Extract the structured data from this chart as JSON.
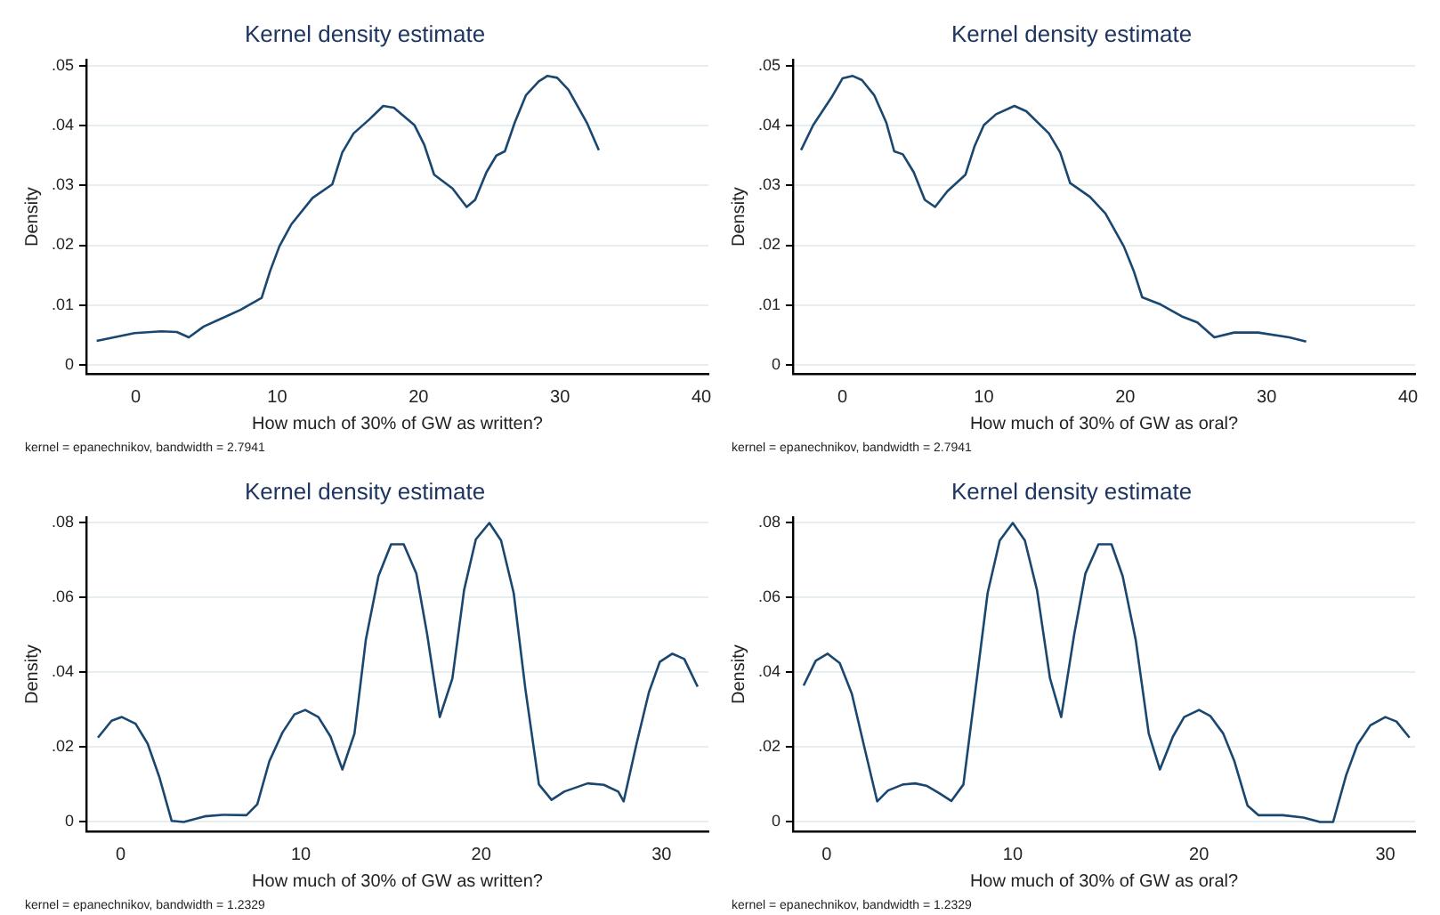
{
  "chart_data": [
    {
      "type": "line",
      "title": "Kernel density estimate",
      "xlabel": "How much of 30% of GW as written?",
      "ylabel": "Density",
      "annotations": [
        "kernel = epanechnikov, bandwidth = 2.7941"
      ],
      "xlim": [
        -3.5,
        40.5
      ],
      "xticks": [
        0,
        10,
        20,
        30,
        40
      ],
      "ylim": [
        -0.0015,
        0.051
      ],
      "yticks": [
        {
          "value": 0,
          "label": "0"
        },
        {
          "value": 0.01,
          "label": ".01"
        },
        {
          "value": 0.02,
          "label": ".02"
        },
        {
          "value": 0.03,
          "label": ".03"
        },
        {
          "value": 0.04,
          "label": ".04"
        },
        {
          "value": 0.05,
          "label": ".05"
        }
      ],
      "grid": "y",
      "legend": false,
      "marker": "none",
      "line_style": "solid",
      "series": [
        {
          "color": "#1a476f",
          "x": [
            -2.77,
            -0.1,
            1.8,
            2.9,
            3.75,
            4.8,
            6.1,
            7.4,
            8.9,
            9.5,
            10.15,
            11.0,
            12.5,
            13.9,
            14.6,
            15.4,
            16.5,
            17.5,
            18.25,
            19.7,
            20.4,
            21.1,
            22.4,
            23.4,
            24.0,
            24.8,
            25.5,
            26.1,
            26.8,
            27.6,
            28.5,
            29.1,
            29.8,
            30.6,
            31.9,
            32.75
          ],
          "values": [
            0.004,
            0.0053,
            0.0056,
            0.0055,
            0.0046,
            0.0064,
            0.0078,
            0.0092,
            0.0112,
            0.0157,
            0.0198,
            0.0235,
            0.0279,
            0.0302,
            0.0355,
            0.0387,
            0.041,
            0.0433,
            0.043,
            0.0401,
            0.0368,
            0.0318,
            0.0295,
            0.0264,
            0.0276,
            0.0322,
            0.035,
            0.0357,
            0.0405,
            0.0451,
            0.0474,
            0.0483,
            0.048,
            0.046,
            0.0405,
            0.0359
          ]
        }
      ]
    },
    {
      "type": "line",
      "title": "Kernel density estimate",
      "xlabel": "How much of 30% of GW as oral?",
      "ylabel": "Density",
      "annotations": [
        "kernel = epanechnikov, bandwidth = 2.7941"
      ],
      "xlim": [
        -3.5,
        40.5
      ],
      "xticks": [
        0,
        10,
        20,
        30,
        40
      ],
      "ylim": [
        -0.0015,
        0.051
      ],
      "yticks": [
        {
          "value": 0,
          "label": "0"
        },
        {
          "value": 0.01,
          "label": ".01"
        },
        {
          "value": 0.02,
          "label": ".02"
        },
        {
          "value": 0.03,
          "label": ".03"
        },
        {
          "value": 0.04,
          "label": ".04"
        },
        {
          "value": 0.05,
          "label": ".05"
        }
      ],
      "grid": "y",
      "legend": false,
      "marker": "none",
      "line_style": "solid",
      "series": [
        {
          "color": "#1a476f",
          "x": [
            -2.93,
            -2.07,
            -0.78,
            0,
            0.73,
            1.38,
            2.24,
            3.1,
            3.66,
            4.27,
            5.04,
            5.82,
            6.55,
            7.41,
            8.7,
            9.35,
            10.0,
            10.86,
            12.16,
            13.0,
            14.6,
            15.4,
            16.1,
            17.5,
            18.6,
            19.9,
            20.6,
            21.2,
            22.5,
            24.0,
            25.1,
            26.3,
            27.7,
            29.4,
            31.6,
            32.8
          ],
          "values": [
            0.0359,
            0.0401,
            0.0447,
            0.0479,
            0.0483,
            0.0476,
            0.0451,
            0.0405,
            0.0357,
            0.0352,
            0.0322,
            0.0276,
            0.0264,
            0.029,
            0.0318,
            0.0366,
            0.0401,
            0.0419,
            0.0433,
            0.0424,
            0.0387,
            0.0355,
            0.0304,
            0.0281,
            0.0253,
            0.0198,
            0.0157,
            0.0113,
            0.0101,
            0.0081,
            0.0071,
            0.0046,
            0.0054,
            0.0054,
            0.0046,
            0.0039
          ]
        }
      ]
    },
    {
      "type": "line",
      "title": "Kernel density estimate",
      "xlabel": "How much of 30% of GW as written?",
      "ylabel": "Density",
      "annotations": [
        "kernel = epanechnikov, bandwidth = 1.2329"
      ],
      "xlim": [
        -1.9,
        32.6
      ],
      "xticks": [
        0,
        10,
        20,
        30
      ],
      "ylim": [
        -0.0025,
        0.0813
      ],
      "yticks": [
        {
          "value": 0,
          "label": "0"
        },
        {
          "value": 0.02,
          "label": ".02"
        },
        {
          "value": 0.04,
          "label": ".04"
        },
        {
          "value": 0.06,
          "label": ".06"
        },
        {
          "value": 0.08,
          "label": ".08"
        }
      ],
      "grid": "y",
      "legend": false,
      "marker": "none",
      "line_style": "solid",
      "series": [
        {
          "color": "#1a476f",
          "x": [
            -1.26,
            -0.5,
            0.07,
            0.83,
            1.5,
            2.16,
            2.83,
            3.5,
            4.66,
            5.65,
            6.98,
            7.58,
            8.25,
            8.98,
            9.64,
            10.24,
            10.97,
            11.64,
            12.3,
            12.97,
            13.6,
            14.3,
            15.0,
            15.7,
            16.4,
            17.0,
            17.7,
            18.4,
            19.05,
            19.7,
            20.45,
            21.1,
            21.8,
            22.45,
            23.2,
            23.9,
            24.6,
            25.9,
            26.8,
            27.6,
            27.9,
            28.6,
            29.3,
            29.9,
            30.6,
            31.26,
            32.0
          ],
          "values": [
            0.0225,
            0.027,
            0.028,
            0.0262,
            0.0209,
            0.0118,
            0.0003,
            0.0,
            0.0015,
            0.0019,
            0.0018,
            0.0047,
            0.0162,
            0.0239,
            0.0287,
            0.0299,
            0.028,
            0.0228,
            0.014,
            0.0236,
            0.0486,
            0.0656,
            0.0741,
            0.0741,
            0.0663,
            0.0501,
            0.028,
            0.0383,
            0.0619,
            0.0754,
            0.0798,
            0.0751,
            0.0611,
            0.0354,
            0.01,
            0.0059,
            0.0081,
            0.0103,
            0.0099,
            0.0081,
            0.0055,
            0.0206,
            0.0346,
            0.0427,
            0.0449,
            0.0435,
            0.0361
          ]
        }
      ]
    },
    {
      "type": "line",
      "title": "Kernel density estimate",
      "xlabel": "How much of 30% of GW as oral?",
      "ylabel": "Density",
      "annotations": [
        "kernel = epanechnikov, bandwidth = 1.2329"
      ],
      "xlim": [
        -1.8,
        31.6
      ],
      "xticks": [
        0,
        10,
        20,
        30
      ],
      "ylim": [
        -0.0025,
        0.0813
      ],
      "yticks": [
        {
          "value": 0,
          "label": "0"
        },
        {
          "value": 0.02,
          "label": ".02"
        },
        {
          "value": 0.04,
          "label": ".04"
        },
        {
          "value": 0.06,
          "label": ".06"
        },
        {
          "value": 0.08,
          "label": ".08"
        }
      ],
      "grid": "y",
      "legend": false,
      "marker": "none",
      "line_style": "solid",
      "series": [
        {
          "color": "#1a476f",
          "x": [
            -1.23,
            -0.58,
            0.06,
            0.71,
            1.36,
            2.0,
            2.72,
            3.3,
            4.1,
            4.76,
            5.4,
            6.05,
            6.7,
            7.35,
            8.0,
            8.65,
            9.3,
            10.0,
            10.65,
            11.3,
            12.0,
            12.6,
            13.3,
            13.9,
            14.6,
            15.3,
            15.9,
            16.6,
            17.3,
            17.9,
            18.6,
            19.2,
            20.0,
            20.6,
            21.3,
            21.9,
            22.6,
            23.2,
            24.5,
            25.6,
            26.5,
            27.2,
            27.9,
            28.5,
            29.2,
            30.0,
            30.6,
            31.3
          ],
          "values": [
            0.0364,
            0.043,
            0.0449,
            0.0424,
            0.0342,
            0.0206,
            0.0055,
            0.0084,
            0.01,
            0.0103,
            0.0096,
            0.0077,
            0.0056,
            0.01,
            0.0354,
            0.0611,
            0.0751,
            0.0798,
            0.0751,
            0.0619,
            0.0383,
            0.028,
            0.0501,
            0.0663,
            0.0741,
            0.0741,
            0.0656,
            0.0486,
            0.0236,
            0.014,
            0.0228,
            0.028,
            0.0299,
            0.0283,
            0.0236,
            0.0162,
            0.0044,
            0.0018,
            0.0018,
            0.0012,
            0.0,
            0.0,
            0.0125,
            0.0206,
            0.0258,
            0.028,
            0.0268,
            0.0225
          ]
        }
      ]
    }
  ]
}
